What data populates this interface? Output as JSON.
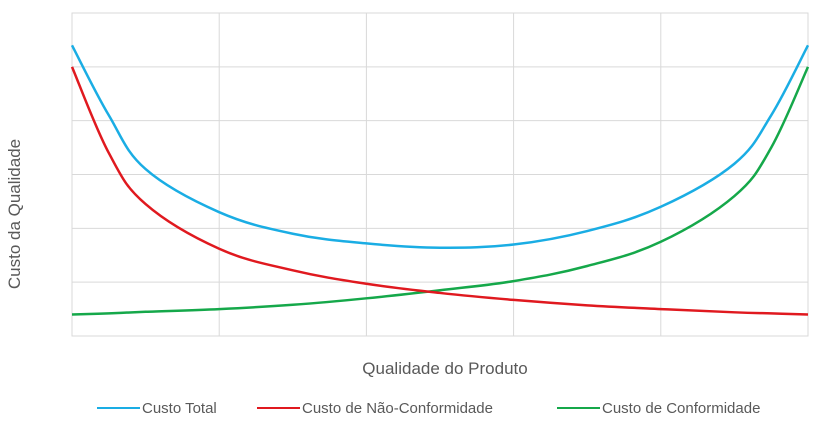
{
  "chart_data": {
    "type": "line",
    "title": "",
    "xlabel": "Qualidade do Produto",
    "ylabel": "Custo da Qualidade",
    "xlim": [
      0,
      100
    ],
    "ylim": [
      0,
      6
    ],
    "x_ticks_shown": false,
    "y_ticks_shown": false,
    "grid": true,
    "legend_position": "bottom",
    "x": [
      0,
      5,
      10,
      20,
      30,
      40,
      50,
      60,
      70,
      80,
      90,
      95,
      100
    ],
    "series": [
      {
        "name": "Custo Total",
        "color": "#1AADE4",
        "values": [
          5.4,
          4.1,
          3.1,
          2.3,
          1.9,
          1.72,
          1.64,
          1.7,
          1.95,
          2.4,
          3.2,
          4.1,
          5.4
        ]
      },
      {
        "name": "Custo de Não-Conformidade",
        "color": "#E0191F",
        "values": [
          5.0,
          3.4,
          2.45,
          1.62,
          1.22,
          0.97,
          0.8,
          0.67,
          0.57,
          0.5,
          0.44,
          0.42,
          0.4
        ]
      },
      {
        "name": "Custo de Conformidade",
        "color": "#15A84A",
        "values": [
          0.4,
          0.42,
          0.45,
          0.5,
          0.58,
          0.7,
          0.85,
          1.02,
          1.3,
          1.75,
          2.6,
          3.5,
          5.0
        ]
      }
    ]
  }
}
